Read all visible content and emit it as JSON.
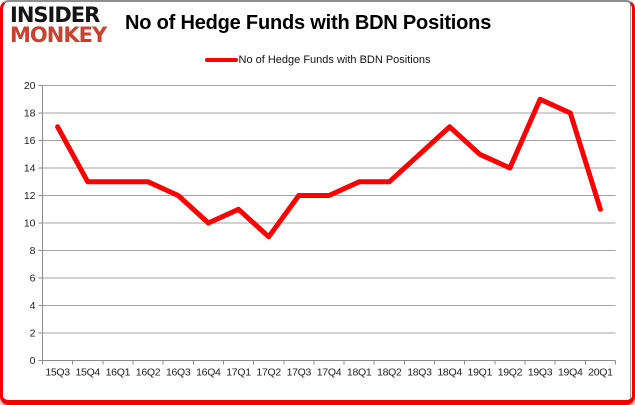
{
  "header": {
    "logo_line1": "INSIDER",
    "logo_line2": "MONKEY",
    "title": "No of Hedge Funds with BDN Positions"
  },
  "legend": {
    "label": "No of Hedge Funds with BDN Positions"
  },
  "colors": {
    "line": "#fe0000",
    "border": "#f10000",
    "logo_red": "#c8432f",
    "logo_black": "#151515",
    "gridline": "#a3a3a3",
    "axis": "#8c8c8c",
    "tick_label": "#222222"
  },
  "chart_data": {
    "type": "line",
    "title": "No of Hedge Funds with BDN Positions",
    "categories": [
      "15Q3",
      "15Q4",
      "16Q1",
      "16Q2",
      "16Q3",
      "16Q4",
      "17Q1",
      "17Q2",
      "17Q3",
      "17Q4",
      "18Q1",
      "18Q2",
      "18Q3",
      "18Q4",
      "19Q1",
      "19Q2",
      "19Q3",
      "19Q4",
      "20Q1"
    ],
    "series": [
      {
        "name": "No of Hedge Funds with BDN Positions",
        "color": "#fe0000",
        "values": [
          17,
          13,
          13,
          13,
          12,
          10,
          11,
          9,
          12,
          12,
          13,
          13,
          15,
          17,
          15,
          14,
          19,
          18,
          11
        ]
      }
    ],
    "xlabel": "",
    "ylabel": "",
    "ylim": [
      0,
      20
    ],
    "y_ticks": [
      0,
      2,
      4,
      6,
      8,
      10,
      12,
      14,
      16,
      18,
      20
    ],
    "grid": true,
    "legend_position": "top"
  }
}
